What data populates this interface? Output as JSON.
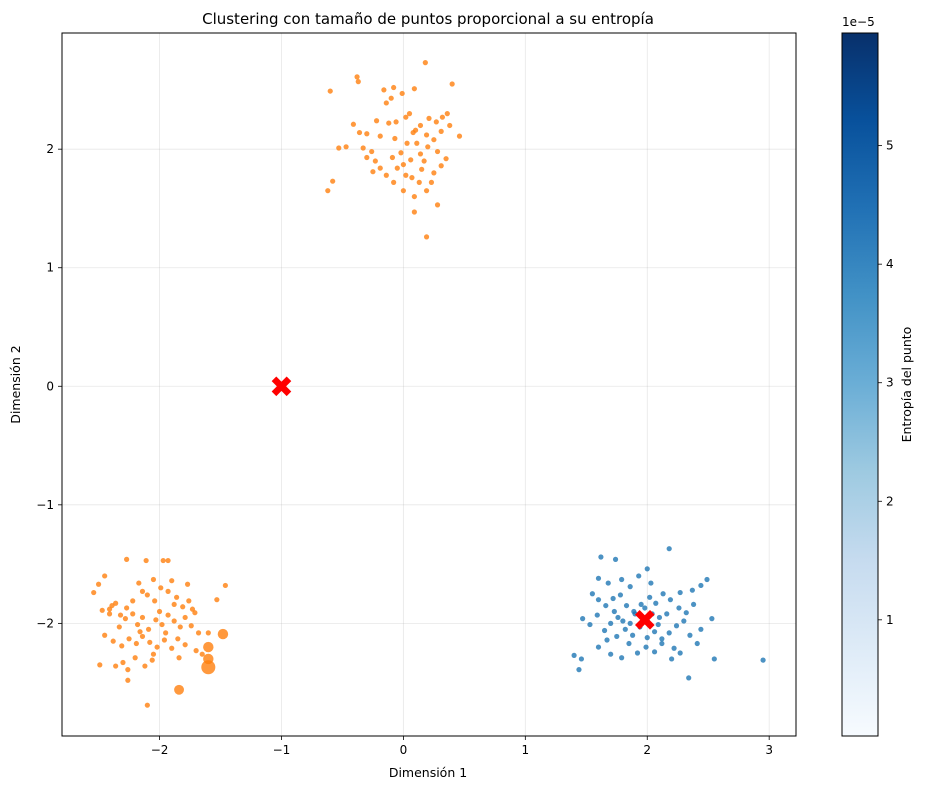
{
  "chart_data": {
    "type": "scatter",
    "title": "Clustering con tamaño de puntos proporcional a su entropía",
    "xlabel": "Dimensión 1",
    "ylabel": "Dimensión 2",
    "xlim": [
      -2.8,
      3.22
    ],
    "ylim": [
      -2.95,
      2.98
    ],
    "xticks": [
      -2,
      -1,
      0,
      1,
      2,
      3
    ],
    "xtick_labels": [
      "−2",
      "−1",
      "0",
      "1",
      "2",
      "3"
    ],
    "yticks": [
      -2,
      -1,
      0,
      1,
      2
    ],
    "ytick_labels": [
      "−2",
      "−1",
      "0",
      "1",
      "2"
    ],
    "grid": true,
    "colors": {
      "orange": "#ff7f0e",
      "blue": "#1f77b4",
      "centroid": "#ff0000"
    },
    "colorbar": {
      "label": "Entropía del punto",
      "offset_text": "1e−5",
      "range": [
        0.02,
        5.95
      ],
      "ticks": [
        1,
        2,
        3,
        4,
        5
      ],
      "tick_labels": [
        "1",
        "2",
        "3",
        "4",
        "5"
      ],
      "cmap": [
        "#f7fbff",
        "#deebf7",
        "#c6dbef",
        "#9ecae1",
        "#6baed6",
        "#4292c6",
        "#2171b5",
        "#08519c",
        "#08306b"
      ]
    },
    "series": [
      {
        "color": "orange",
        "points": [
          [
            -0.6,
            2.49
          ],
          [
            -0.38,
            2.61
          ],
          [
            -0.37,
            2.57
          ],
          [
            -0.16,
            2.5
          ],
          [
            -0.14,
            2.39
          ],
          [
            -0.08,
            2.52
          ],
          [
            -0.01,
            2.47
          ],
          [
            0.09,
            2.51
          ],
          [
            0.18,
            2.73
          ],
          [
            0.4,
            2.55
          ],
          [
            0.14,
            2.2
          ],
          [
            0.02,
            2.27
          ],
          [
            -0.06,
            2.23
          ],
          [
            -0.12,
            2.22
          ],
          [
            -0.22,
            2.24
          ],
          [
            -0.41,
            2.21
          ],
          [
            -0.3,
            2.13
          ],
          [
            -0.33,
            2.01
          ],
          [
            -0.47,
            2.02
          ],
          [
            -0.53,
            2.01
          ],
          [
            -0.19,
            2.11
          ],
          [
            -0.07,
            2.09
          ],
          [
            0.08,
            2.14
          ],
          [
            0.19,
            2.12
          ],
          [
            0.25,
            2.08
          ],
          [
            0.31,
            2.15
          ],
          [
            0.38,
            2.2
          ],
          [
            0.46,
            2.11
          ],
          [
            0.32,
            2.27
          ],
          [
            0.21,
            2.26
          ],
          [
            0.1,
            2.16
          ],
          [
            0.03,
            2.05
          ],
          [
            -0.02,
            1.97
          ],
          [
            -0.09,
            1.93
          ],
          [
            -0.23,
            1.9
          ],
          [
            -0.19,
            1.84
          ],
          [
            -0.14,
            1.78
          ],
          [
            -0.05,
            1.84
          ],
          [
            0.02,
            1.78
          ],
          [
            0.07,
            1.76
          ],
          [
            0.13,
            1.72
          ],
          [
            0.19,
            1.65
          ],
          [
            0.25,
            1.8
          ],
          [
            0.31,
            1.86
          ],
          [
            0.35,
            1.92
          ],
          [
            0.28,
            1.98
          ],
          [
            0.2,
            2.02
          ],
          [
            0.14,
            1.96
          ],
          [
            0.06,
            1.91
          ],
          [
            0.0,
            1.87
          ],
          [
            -0.08,
            1.72
          ],
          [
            0.15,
            1.83
          ],
          [
            0.23,
            1.72
          ],
          [
            0.09,
            1.6
          ],
          [
            0.0,
            1.65
          ],
          [
            -0.3,
            1.93
          ],
          [
            -0.25,
            1.81
          ],
          [
            -0.62,
            1.65
          ],
          [
            -0.58,
            1.73
          ],
          [
            0.09,
            1.47
          ],
          [
            0.28,
            1.53
          ],
          [
            0.19,
            1.26
          ],
          [
            0.05,
            2.3
          ],
          [
            -0.1,
            2.43
          ],
          [
            0.36,
            2.3
          ],
          [
            -0.26,
            1.98
          ],
          [
            0.11,
            2.05
          ],
          [
            0.27,
            2.23
          ],
          [
            -0.36,
            2.14
          ],
          [
            0.17,
            1.9
          ]
        ]
      },
      {
        "color": "orange",
        "points": [
          [
            -2.54,
            -1.74
          ],
          [
            -2.5,
            -1.67
          ],
          [
            -2.45,
            -1.6
          ],
          [
            -2.47,
            -1.89
          ],
          [
            -2.41,
            -1.88
          ],
          [
            -2.36,
            -1.83
          ],
          [
            -2.32,
            -1.93
          ],
          [
            -2.27,
            -1.87
          ],
          [
            -2.22,
            -1.81
          ],
          [
            -2.17,
            -1.66
          ],
          [
            -2.14,
            -1.73
          ],
          [
            -2.1,
            -1.76
          ],
          [
            -2.04,
            -1.81
          ],
          [
            -1.99,
            -1.7
          ],
          [
            -1.93,
            -1.73
          ],
          [
            -1.86,
            -1.78
          ],
          [
            -1.81,
            -1.86
          ],
          [
            -1.76,
            -1.81
          ],
          [
            -1.71,
            -1.91
          ],
          [
            -1.77,
            -1.67
          ],
          [
            -1.9,
            -1.64
          ],
          [
            -2.05,
            -1.63
          ],
          [
            -2.11,
            -1.47
          ],
          [
            -2.27,
            -1.46
          ],
          [
            -1.97,
            -1.47
          ],
          [
            -1.93,
            -1.47
          ],
          [
            -2.41,
            -1.92
          ],
          [
            -2.33,
            -2.03
          ],
          [
            -2.28,
            -1.96
          ],
          [
            -2.22,
            -1.92
          ],
          [
            -2.18,
            -2.01
          ],
          [
            -2.14,
            -1.95
          ],
          [
            -2.09,
            -2.05
          ],
          [
            -2.03,
            -1.97
          ],
          [
            -1.98,
            -2.01
          ],
          [
            -1.93,
            -1.93
          ],
          [
            -1.88,
            -1.98
          ],
          [
            -1.83,
            -2.03
          ],
          [
            -1.79,
            -1.95
          ],
          [
            -1.74,
            -2.02
          ],
          [
            -1.68,
            -2.08
          ],
          [
            -2.45,
            -2.1
          ],
          [
            -2.38,
            -2.15
          ],
          [
            -2.31,
            -2.19
          ],
          [
            -2.25,
            -2.13
          ],
          [
            -2.19,
            -2.17
          ],
          [
            -2.14,
            -2.11
          ],
          [
            -2.08,
            -2.16
          ],
          [
            -2.02,
            -2.2
          ],
          [
            -1.96,
            -2.14
          ],
          [
            -1.9,
            -2.21
          ],
          [
            -1.85,
            -2.13
          ],
          [
            -1.79,
            -2.18
          ],
          [
            -2.36,
            -2.36
          ],
          [
            -2.3,
            -2.33
          ],
          [
            -2.26,
            -2.39
          ],
          [
            -2.2,
            -2.29
          ],
          [
            -2.12,
            -2.36
          ],
          [
            -2.06,
            -2.31
          ],
          [
            -2.26,
            -2.48
          ],
          [
            -2.1,
            -2.69
          ],
          [
            -2.49,
            -2.35
          ],
          [
            -1.84,
            -2.29
          ],
          [
            -1.7,
            -2.23
          ],
          [
            -1.65,
            -2.26
          ],
          [
            -1.6,
            -2.08
          ],
          [
            -1.53,
            -1.8
          ],
          [
            -1.46,
            -1.68
          ],
          [
            -2.0,
            -1.9
          ],
          [
            -1.95,
            -2.08
          ],
          [
            -2.16,
            -2.07
          ],
          [
            -2.39,
            -1.85
          ],
          [
            -1.88,
            -1.84
          ],
          [
            -2.05,
            -2.26
          ],
          [
            -1.73,
            -1.88
          ]
        ],
        "large_points": [
          [
            -1.6,
            -2.2,
            1.0
          ],
          [
            -1.6,
            -2.3,
            1.0
          ],
          [
            -1.6,
            -2.37,
            1.35
          ],
          [
            -1.48,
            -2.09,
            1.0
          ],
          [
            -1.84,
            -2.56,
            0.95
          ]
        ]
      },
      {
        "color": "blue",
        "points": [
          [
            1.62,
            -1.44
          ],
          [
            1.74,
            -1.46
          ],
          [
            2.18,
            -1.37
          ],
          [
            1.6,
            -1.62
          ],
          [
            1.68,
            -1.66
          ],
          [
            1.79,
            -1.63
          ],
          [
            1.86,
            -1.69
          ],
          [
            1.93,
            -1.6
          ],
          [
            2.0,
            -1.54
          ],
          [
            2.03,
            -1.66
          ],
          [
            1.55,
            -1.75
          ],
          [
            1.6,
            -1.8
          ],
          [
            1.66,
            -1.85
          ],
          [
            1.72,
            -1.79
          ],
          [
            1.78,
            -1.76
          ],
          [
            1.83,
            -1.85
          ],
          [
            1.89,
            -1.9
          ],
          [
            1.95,
            -1.84
          ],
          [
            2.02,
            -1.78
          ],
          [
            2.07,
            -1.83
          ],
          [
            2.13,
            -1.75
          ],
          [
            2.19,
            -1.8
          ],
          [
            2.26,
            -1.87
          ],
          [
            2.32,
            -1.91
          ],
          [
            2.38,
            -1.84
          ],
          [
            2.44,
            -1.68
          ],
          [
            2.49,
            -1.63
          ],
          [
            2.37,
            -1.72
          ],
          [
            2.27,
            -1.74
          ],
          [
            1.47,
            -1.96
          ],
          [
            1.53,
            -2.01
          ],
          [
            1.59,
            -1.93
          ],
          [
            1.65,
            -2.06
          ],
          [
            1.7,
            -2.0
          ],
          [
            1.76,
            -1.95
          ],
          [
            1.82,
            -2.05
          ],
          [
            1.88,
            -2.1
          ],
          [
            1.94,
            -2.03
          ],
          [
            2.0,
            -2.12
          ],
          [
            2.06,
            -2.07
          ],
          [
            2.12,
            -2.13
          ],
          [
            2.18,
            -2.08
          ],
          [
            2.24,
            -2.02
          ],
          [
            2.3,
            -1.98
          ],
          [
            2.35,
            -2.1
          ],
          [
            2.44,
            -2.05
          ],
          [
            2.53,
            -1.96
          ],
          [
            1.46,
            -2.3
          ],
          [
            1.4,
            -2.27
          ],
          [
            1.44,
            -2.39
          ],
          [
            1.6,
            -2.2
          ],
          [
            1.7,
            -2.26
          ],
          [
            1.79,
            -2.29
          ],
          [
            1.85,
            -2.17
          ],
          [
            1.92,
            -2.25
          ],
          [
            1.99,
            -2.2
          ],
          [
            2.06,
            -2.24
          ],
          [
            2.12,
            -2.17
          ],
          [
            2.2,
            -2.3
          ],
          [
            2.27,
            -2.25
          ],
          [
            2.34,
            -2.46
          ],
          [
            2.55,
            -2.3
          ],
          [
            2.95,
            -2.31
          ],
          [
            1.75,
            -2.11
          ],
          [
            2.1,
            -1.95
          ],
          [
            2.0,
            -1.98
          ],
          [
            1.9,
            -1.92
          ],
          [
            2.16,
            -1.92
          ],
          [
            1.98,
            -1.87
          ],
          [
            2.09,
            -2.01
          ],
          [
            1.86,
            -2.0
          ],
          [
            2.22,
            -2.21
          ],
          [
            1.67,
            -2.14
          ],
          [
            2.41,
            -2.17
          ],
          [
            1.73,
            -1.9
          ],
          [
            2.04,
            -1.92
          ],
          [
            1.8,
            -1.98
          ]
        ]
      }
    ],
    "centroids": [
      [
        -1.0,
        0.0
      ],
      [
        1.98,
        -1.97
      ]
    ]
  }
}
